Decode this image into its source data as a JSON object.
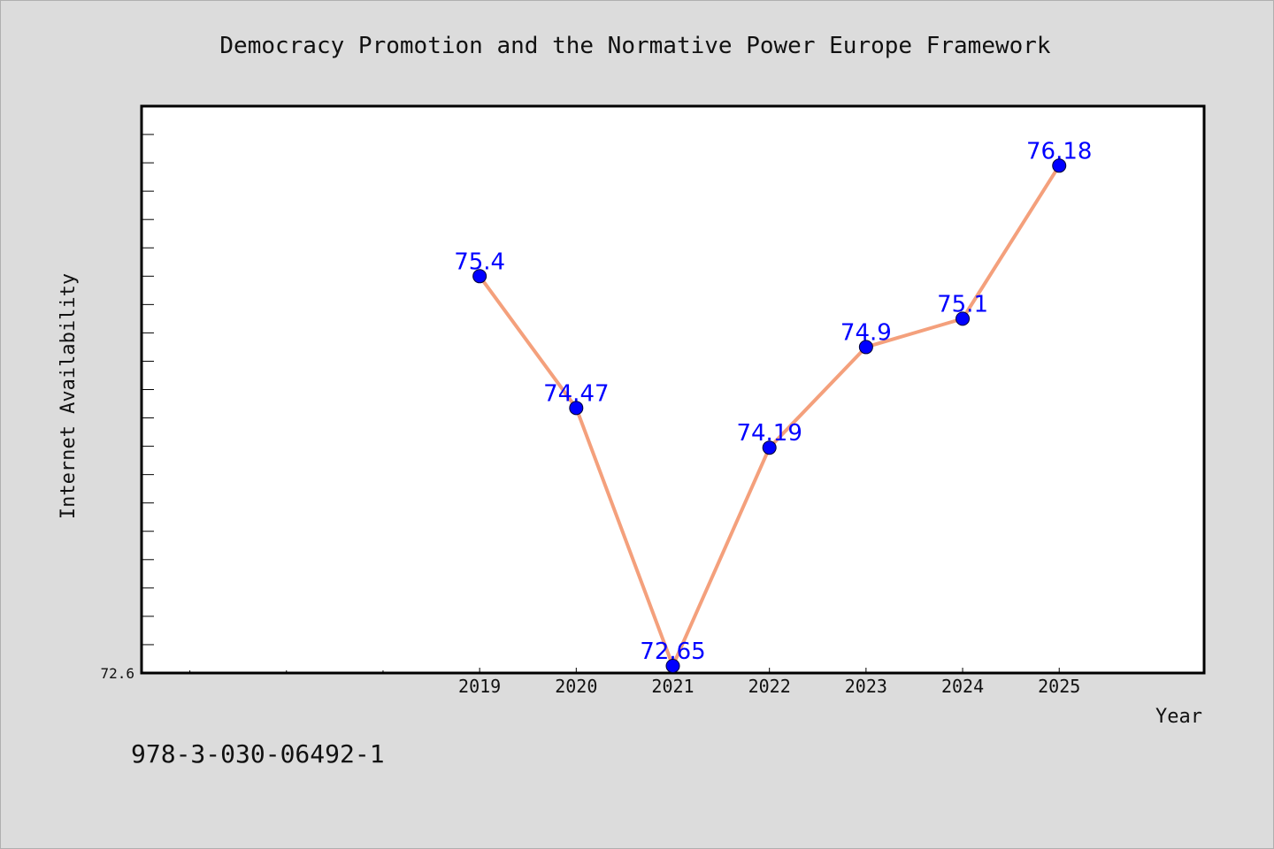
{
  "isbn": "978-3-030-06492-1",
  "chart_data": {
    "type": "line",
    "title": "Democracy Promotion and the Normative Power Europe Framework",
    "xlabel": "Year",
    "ylabel": "Internet Availability",
    "categories": [
      "2019",
      "2020",
      "2021",
      "2022",
      "2023",
      "2024",
      "2025"
    ],
    "series": [
      {
        "values": [
          75.4,
          74.47,
          72.65,
          74.19,
          74.9,
          75.1,
          76.18
        ]
      }
    ],
    "data_labels": [
      "75.4",
      "74.47",
      "72.65",
      "74.19",
      "74.9",
      "75.1",
      "76.18"
    ],
    "x_range": [
      2015.5,
      2026.5
    ],
    "ylim": [
      72.6,
      76.6
    ],
    "y_tick_labels": [
      "72.6"
    ],
    "grid": false,
    "line_color": "#f4a07c",
    "marker_color": "#0000ff"
  }
}
